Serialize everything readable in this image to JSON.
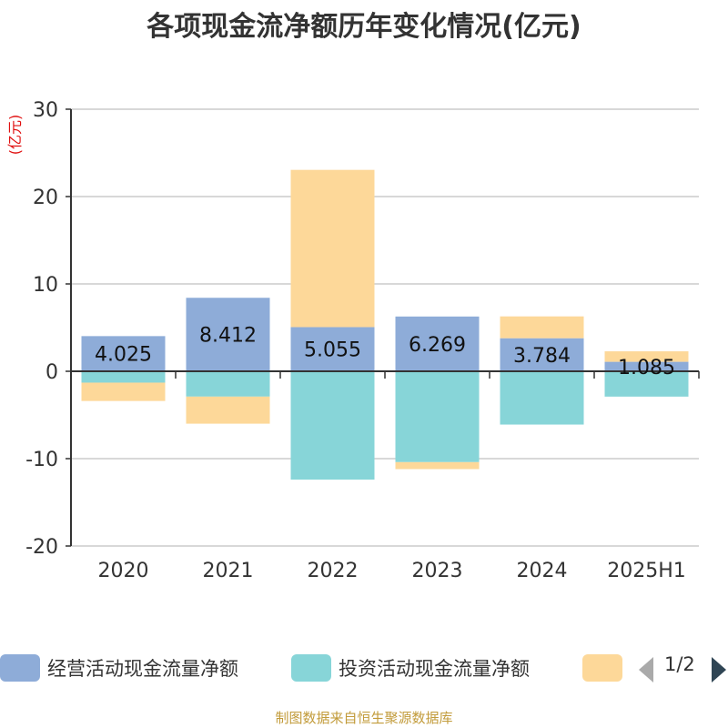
{
  "title": "各项现金流净额历年变化情况(亿元)",
  "footer": "制图数据来自恒生聚源数据库",
  "legend": {
    "items": [
      {
        "label": "经营活动现金流量净额",
        "color": "#8eacd8"
      },
      {
        "label": "投资活动现金流量净额",
        "color": "#87d5d8"
      },
      {
        "label": "",
        "color": "#fdd899"
      }
    ],
    "page": "1/2"
  },
  "chart_data": {
    "type": "bar",
    "stacked": true,
    "categories": [
      "2020",
      "2021",
      "2022",
      "2023",
      "2024",
      "2025H1"
    ],
    "ylabel": "(亿元)",
    "ylim": [
      -20,
      30
    ],
    "yticks": [
      -20,
      -10,
      0,
      10,
      20,
      30
    ],
    "grid": true,
    "series": [
      {
        "name": "经营活动现金流量净额",
        "color": "#8eacd8",
        "values": [
          4.025,
          8.412,
          5.055,
          6.269,
          3.784,
          1.085
        ],
        "show_labels": true
      },
      {
        "name": "投资活动现金流量净额",
        "color": "#87d5d8",
        "values": [
          -1.3,
          -2.9,
          -12.4,
          -10.4,
          -6.1,
          -2.9
        ],
        "show_labels": false
      },
      {
        "color": "#fdd899",
        "values": [
          -2.1,
          -3.1,
          18.0,
          -0.8,
          2.5,
          1.2
        ],
        "show_labels": false
      }
    ]
  }
}
